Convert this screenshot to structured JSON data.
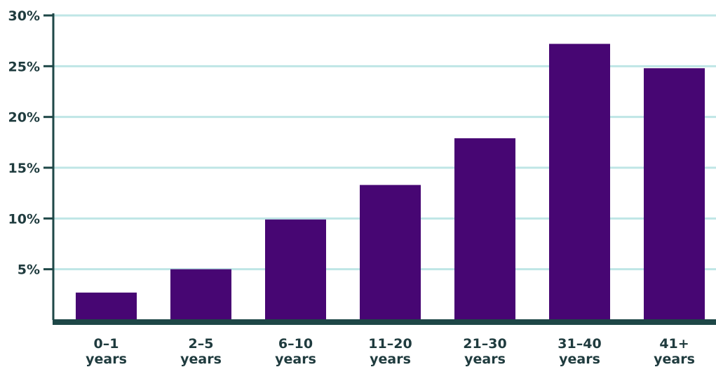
{
  "colors": {
    "bar": "#470673",
    "grid": "#bfe6e6",
    "axis": "#1e4747",
    "text": "#1f3b3e"
  },
  "chart_data": {
    "type": "bar",
    "title": "",
    "xlabel": "",
    "ylabel": "",
    "categories": [
      {
        "line1": "0–1",
        "line2": "years"
      },
      {
        "line1": "2–5",
        "line2": "years"
      },
      {
        "line1": "6–10",
        "line2": "years"
      },
      {
        "line1": "11–20",
        "line2": "years"
      },
      {
        "line1": "21–30",
        "line2": "years"
      },
      {
        "line1": "31–40",
        "line2": "years"
      },
      {
        "line1": "41+",
        "line2": "years"
      }
    ],
    "values": [
      2.7,
      5.0,
      9.9,
      13.3,
      17.9,
      27.2,
      24.8
    ],
    "ylim": [
      0,
      30
    ],
    "yticks": [
      {
        "value": 5,
        "label": "5%"
      },
      {
        "value": 10,
        "label": "10%"
      },
      {
        "value": 15,
        "label": "15%"
      },
      {
        "value": 20,
        "label": "20%"
      },
      {
        "value": 25,
        "label": "25%"
      },
      {
        "value": 30,
        "label": "30%"
      }
    ],
    "grid": true,
    "legend": "none"
  }
}
